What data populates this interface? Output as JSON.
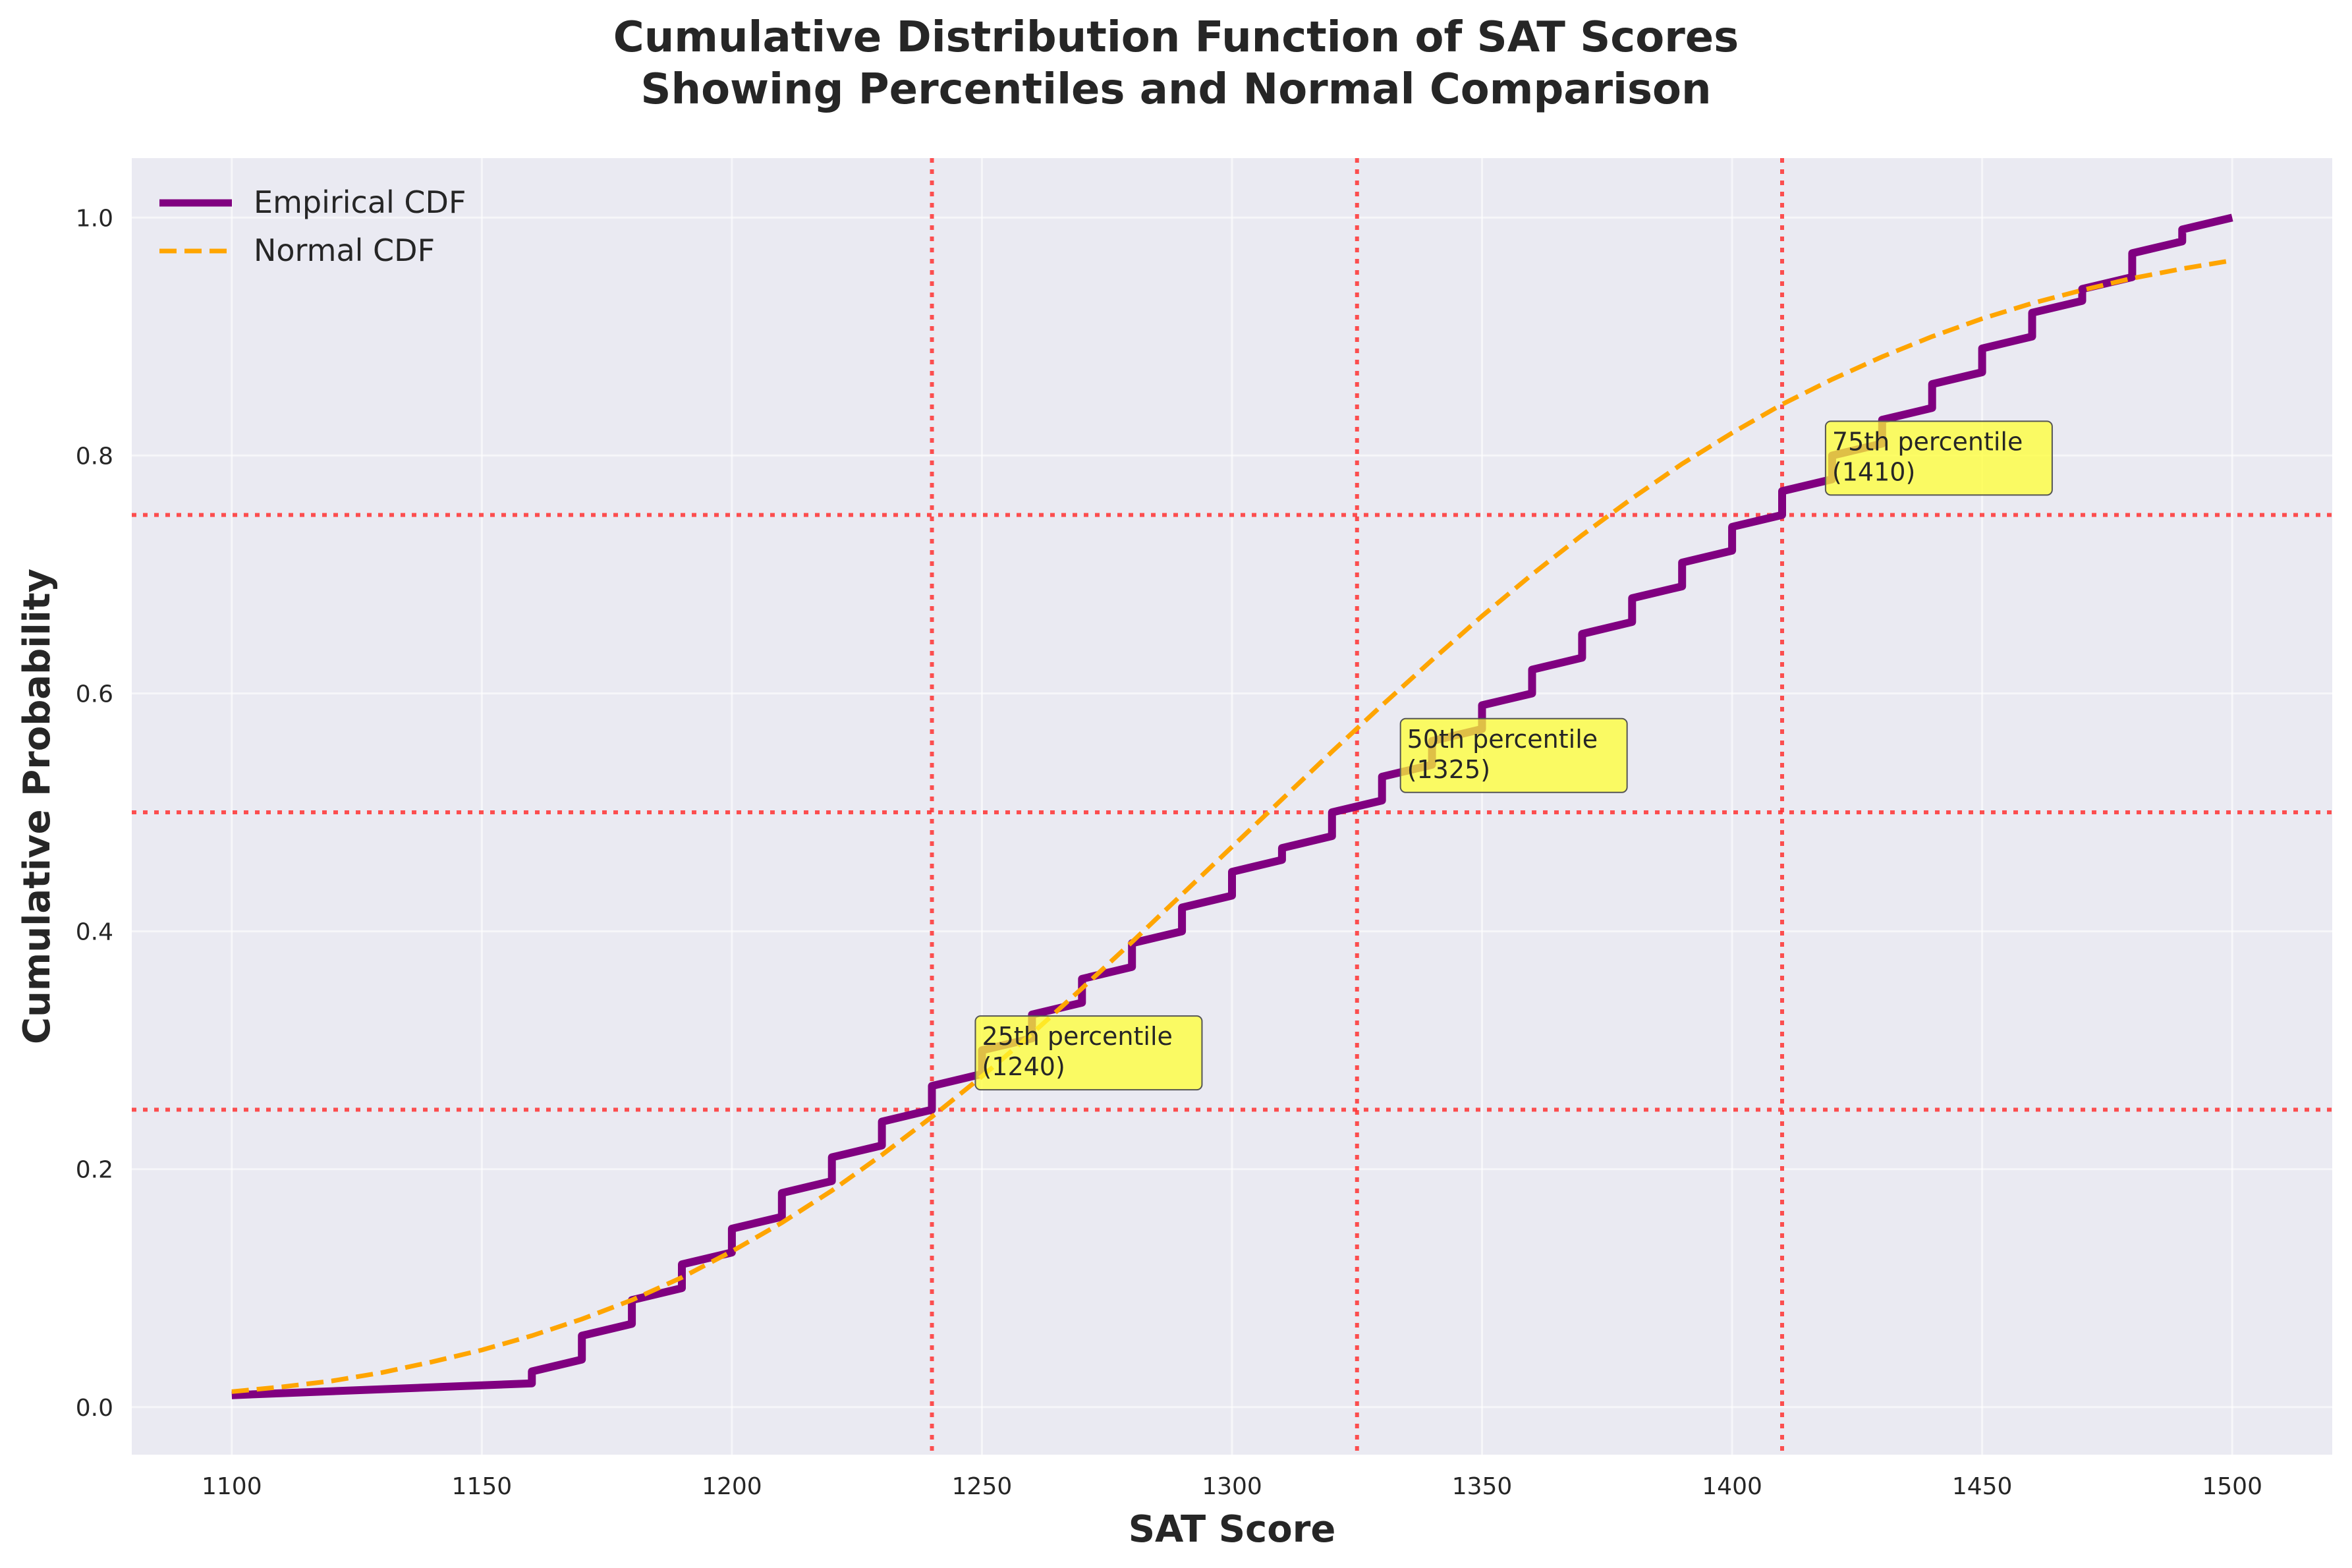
{
  "chart_data": {
    "type": "line",
    "title_lines": [
      "Cumulative Distribution Function of SAT Scores",
      "Showing Percentiles and Normal Comparison"
    ],
    "xlabel": "SAT Score",
    "ylabel": "Cumulative Probability",
    "xlim": [
      1080,
      1520
    ],
    "ylim": [
      -0.04,
      1.05
    ],
    "xticks": [
      1100,
      1150,
      1200,
      1250,
      1300,
      1350,
      1400,
      1450,
      1500
    ],
    "yticks": [
      0.0,
      0.2,
      0.4,
      0.6,
      0.8,
      1.0
    ],
    "xtick_labels": [
      "1100",
      "1150",
      "1200",
      "1250",
      "1300",
      "1350",
      "1400",
      "1450",
      "1500"
    ],
    "ytick_labels": [
      "0.0",
      "0.2",
      "0.4",
      "0.6",
      "0.8",
      "1.0"
    ],
    "grid": true,
    "legend_position": "top-left",
    "colors": {
      "background": "#eaeaf2",
      "empirical": "#800080",
      "normal": "#ffa500",
      "reference": "#ff3333",
      "annotation_fill": "#ffff33"
    },
    "series": [
      {
        "name": "Empirical CDF",
        "style": "solid",
        "x": [
          1100,
          1160,
          1160,
          1170,
          1170,
          1180,
          1180,
          1190,
          1190,
          1200,
          1200,
          1210,
          1210,
          1220,
          1220,
          1230,
          1230,
          1240,
          1240,
          1250,
          1250,
          1260,
          1260,
          1270,
          1270,
          1280,
          1280,
          1290,
          1290,
          1300,
          1300,
          1310,
          1310,
          1320,
          1320,
          1330,
          1330,
          1340,
          1340,
          1350,
          1350,
          1360,
          1360,
          1370,
          1370,
          1380,
          1380,
          1390,
          1390,
          1400,
          1400,
          1410,
          1410,
          1420,
          1420,
          1430,
          1430,
          1440,
          1440,
          1450,
          1450,
          1460,
          1460,
          1470,
          1470,
          1480,
          1480,
          1490,
          1490,
          1500
        ],
        "y": [
          0.01,
          0.02,
          0.03,
          0.04,
          0.06,
          0.07,
          0.09,
          0.1,
          0.12,
          0.13,
          0.15,
          0.16,
          0.18,
          0.19,
          0.21,
          0.22,
          0.24,
          0.25,
          0.27,
          0.28,
          0.3,
          0.31,
          0.33,
          0.34,
          0.36,
          0.37,
          0.39,
          0.4,
          0.42,
          0.43,
          0.45,
          0.46,
          0.47,
          0.48,
          0.5,
          0.51,
          0.53,
          0.54,
          0.56,
          0.57,
          0.59,
          0.6,
          0.62,
          0.63,
          0.65,
          0.66,
          0.68,
          0.69,
          0.71,
          0.72,
          0.74,
          0.75,
          0.77,
          0.78,
          0.8,
          0.81,
          0.83,
          0.84,
          0.86,
          0.87,
          0.89,
          0.9,
          0.92,
          0.93,
          0.94,
          0.95,
          0.97,
          0.98,
          0.99,
          1.0
        ]
      },
      {
        "name": "Normal CDF",
        "style": "dashed",
        "x": [
          1100,
          1110,
          1120,
          1130,
          1140,
          1150,
          1160,
          1170,
          1180,
          1190,
          1200,
          1210,
          1220,
          1230,
          1240,
          1250,
          1260,
          1270,
          1280,
          1290,
          1300,
          1310,
          1320,
          1330,
          1340,
          1350,
          1360,
          1370,
          1380,
          1390,
          1400,
          1410,
          1420,
          1430,
          1440,
          1450,
          1460,
          1470,
          1480,
          1490,
          1500
        ],
        "y": [
          0.013,
          0.017,
          0.022,
          0.029,
          0.038,
          0.048,
          0.06,
          0.074,
          0.09,
          0.109,
          0.131,
          0.155,
          0.182,
          0.212,
          0.244,
          0.278,
          0.314,
          0.352,
          0.391,
          0.431,
          0.471,
          0.511,
          0.551,
          0.59,
          0.628,
          0.665,
          0.7,
          0.733,
          0.764,
          0.793,
          0.819,
          0.843,
          0.864,
          0.883,
          0.9,
          0.915,
          0.928,
          0.939,
          0.949,
          0.957,
          0.964
        ]
      }
    ],
    "reference_lines": {
      "vertical": [
        1240,
        1325,
        1410
      ],
      "horizontal": [
        0.25,
        0.5,
        0.75
      ]
    },
    "annotations": [
      {
        "x": 1250,
        "y": 0.3,
        "line1": "25th percentile",
        "line2": "(1240)"
      },
      {
        "x": 1335,
        "y": 0.55,
        "line1": "50th percentile",
        "line2": "(1325)"
      },
      {
        "x": 1420,
        "y": 0.8,
        "line1": "75th percentile",
        "line2": "(1410)"
      }
    ]
  }
}
